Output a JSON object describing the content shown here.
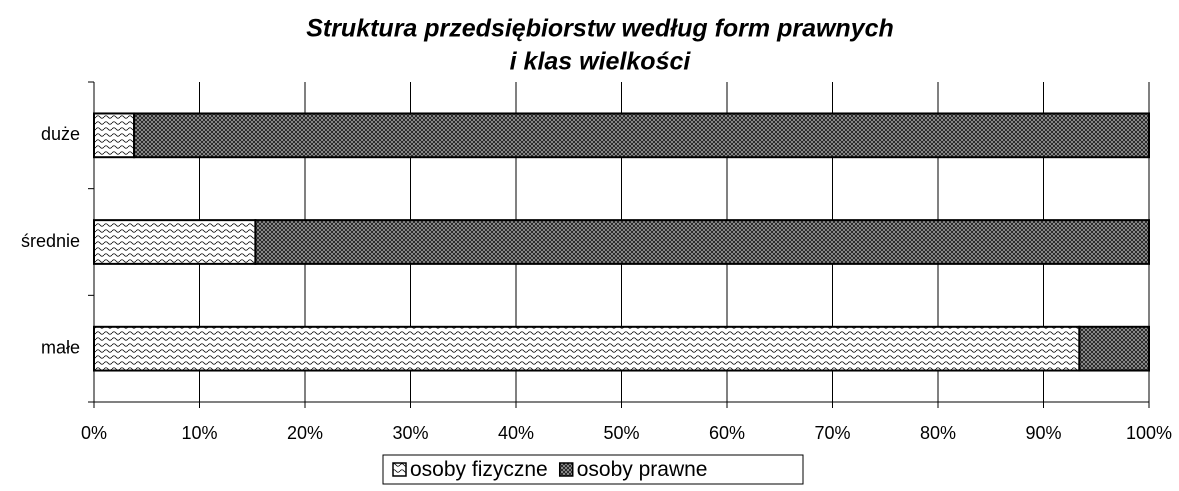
{
  "chart_data": {
    "type": "stacked_barh",
    "title": [
      "Struktura przedsiębiorstw według form prawnych",
      "i klas wielkości"
    ],
    "categories": [
      "duże",
      "średnie",
      "małe"
    ],
    "series": [
      {
        "name": "osoby fizyczne",
        "values": [
          3.8,
          15.3,
          93.4
        ]
      },
      {
        "name": "osoby prawne",
        "values": [
          96.2,
          84.7,
          6.6
        ]
      }
    ],
    "xlim": [
      0,
      100
    ],
    "xticks": [
      {
        "value": 0,
        "label": "0%"
      },
      {
        "value": 10,
        "label": "10%"
      },
      {
        "value": 20,
        "label": "20%"
      },
      {
        "value": 30,
        "label": "30%"
      },
      {
        "value": 40,
        "label": "40%"
      },
      {
        "value": 50,
        "label": "50%"
      },
      {
        "value": 60,
        "label": "60%"
      },
      {
        "value": 70,
        "label": "70%"
      },
      {
        "value": 80,
        "label": "80%"
      },
      {
        "value": 90,
        "label": "90%"
      },
      {
        "value": 100,
        "label": "100%"
      }
    ],
    "grid": true,
    "legend": "bottom"
  }
}
